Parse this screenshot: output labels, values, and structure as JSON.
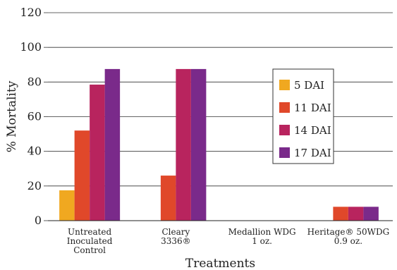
{
  "chart_data": {
    "type": "bar",
    "title": "",
    "xlabel": "Treatments",
    "ylabel": "% Mortality",
    "ylim": [
      0,
      120
    ],
    "yticks": [
      0,
      20,
      40,
      60,
      80,
      100,
      120
    ],
    "grid": true,
    "legend_position": "right",
    "categories": [
      [
        "Untreated",
        "Inoculated",
        "Control"
      ],
      [
        "Cleary",
        "3336®"
      ],
      [
        "Medallion WDG",
        "1 oz."
      ],
      [
        "Heritage® 50WDG",
        "0.9 oz."
      ]
    ],
    "series": [
      {
        "name": "5 DAI",
        "color": "#f0a820",
        "values": [
          17.5,
          0,
          0,
          0
        ]
      },
      {
        "name": "11 DAI",
        "color": "#e0482a",
        "values": [
          52,
          26,
          0,
          8
        ]
      },
      {
        "name": "14 DAI",
        "color": "#b8245e",
        "values": [
          78.5,
          87.5,
          0,
          8
        ]
      },
      {
        "name": "17 DAI",
        "color": "#7a2a8a",
        "values": [
          87.5,
          87.5,
          0,
          8
        ]
      }
    ]
  }
}
